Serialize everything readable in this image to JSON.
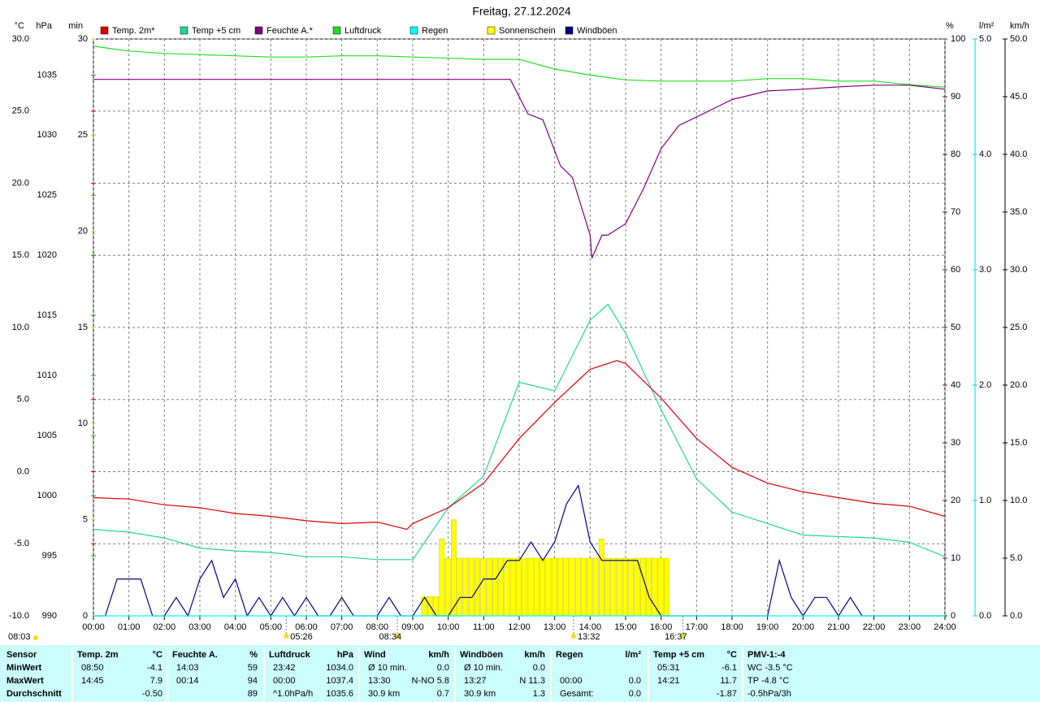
{
  "chart_data": {
    "type": "line",
    "title": "Freitag, 27.12.2024",
    "xlim": [
      0,
      1440
    ],
    "xticks": [
      {
        "value": 0,
        "label": "00:00"
      },
      {
        "value": 60,
        "label": "01:00"
      },
      {
        "value": 120,
        "label": "02:00"
      },
      {
        "value": 180,
        "label": "03:00"
      },
      {
        "value": 240,
        "label": "04:00"
      },
      {
        "value": 300,
        "label": "05:00"
      },
      {
        "value": 360,
        "label": "06:00"
      },
      {
        "value": 420,
        "label": "07:00"
      },
      {
        "value": 480,
        "label": "08:00"
      },
      {
        "value": 540,
        "label": "09:00"
      },
      {
        "value": 600,
        "label": "10:00"
      },
      {
        "value": 660,
        "label": "11:00"
      },
      {
        "value": 720,
        "label": "12:00"
      },
      {
        "value": 780,
        "label": "13:00"
      },
      {
        "value": 840,
        "label": "14:00"
      },
      {
        "value": 900,
        "label": "15:00"
      },
      {
        "value": 960,
        "label": "16:00"
      },
      {
        "value": 1020,
        "label": "17:00"
      },
      {
        "value": 1080,
        "label": "18:00"
      },
      {
        "value": 1140,
        "label": "19:00"
      },
      {
        "value": 1200,
        "label": "20:00"
      },
      {
        "value": 1260,
        "label": "21:00"
      },
      {
        "value": 1320,
        "label": "22:00"
      },
      {
        "value": 1380,
        "label": "23:00"
      },
      {
        "value": 1440,
        "label": "24:00"
      }
    ],
    "grid": true,
    "grid_axis": "temp",
    "axes": {
      "temp": {
        "label": "°C",
        "color": "#e00000",
        "side": "left",
        "lim": [
          -10,
          30
        ],
        "ticks": [
          {
            "value": -10,
            "label": "-10.0"
          },
          {
            "value": -5,
            "label": "-5.0"
          },
          {
            "value": 0,
            "label": "0.0"
          },
          {
            "value": 5,
            "label": "5.0"
          },
          {
            "value": 10,
            "label": "10.0"
          },
          {
            "value": 15,
            "label": "15.0"
          },
          {
            "value": 20,
            "label": "20.0"
          },
          {
            "value": 25,
            "label": "25.0"
          },
          {
            "value": 30,
            "label": "30.0"
          }
        ]
      },
      "hpa": {
        "label": "hPa",
        "color": "#00c000",
        "side": "left",
        "lim": [
          990,
          1038
        ],
        "ticks": [
          990,
          995,
          1000,
          1005,
          1010,
          1015,
          1020,
          1025,
          1030,
          1035
        ]
      },
      "min": {
        "label": "min",
        "color": "#e8e800",
        "side": "left",
        "lim": [
          0,
          30
        ],
        "ticks": [
          0,
          5,
          10,
          15,
          20,
          25,
          30
        ]
      },
      "pct": {
        "label": "%",
        "color": "#800080",
        "side": "right",
        "lim": [
          0,
          100
        ],
        "ticks": [
          0,
          10,
          20,
          30,
          40,
          50,
          60,
          70,
          80,
          90,
          100
        ]
      },
      "rain": {
        "label": "l/m²",
        "color": "#00d8d8",
        "side": "right",
        "lim": [
          0,
          5
        ],
        "ticks": [
          {
            "value": 0,
            "label": "0.0"
          },
          {
            "value": 1,
            "label": "1.0"
          },
          {
            "value": 2,
            "label": "2.0"
          },
          {
            "value": 3,
            "label": "3.0"
          },
          {
            "value": 4,
            "label": "4.0"
          },
          {
            "value": 5,
            "label": "5.0"
          }
        ]
      },
      "wind": {
        "label": "km/h",
        "color": "#000000",
        "side": "right",
        "lim": [
          0,
          50
        ],
        "ticks": [
          {
            "value": 0,
            "label": "0.0"
          },
          {
            "value": 5,
            "label": "5.0"
          },
          {
            "value": 10,
            "label": "10.0"
          },
          {
            "value": 15,
            "label": "15.0"
          },
          {
            "value": 20,
            "label": "20.0"
          },
          {
            "value": 25,
            "label": "25.0"
          },
          {
            "value": 30,
            "label": "30.0"
          },
          {
            "value": 35,
            "label": "35.0"
          },
          {
            "value": 40,
            "label": "40.0"
          },
          {
            "value": 45,
            "label": "45.0"
          },
          {
            "value": 50,
            "label": "50.0"
          }
        ]
      }
    },
    "series": [
      {
        "name": "Temp. 2m*",
        "color": "#e00000",
        "axis": "temp",
        "type": "line",
        "x": [
          0,
          60,
          120,
          180,
          240,
          300,
          360,
          420,
          480,
          530,
          540,
          600,
          660,
          720,
          780,
          840,
          885,
          900,
          960,
          1020,
          1080,
          1140,
          1200,
          1260,
          1320,
          1380,
          1440
        ],
        "values": [
          -1.8,
          -1.9,
          -2.3,
          -2.5,
          -2.9,
          -3.1,
          -3.4,
          -3.6,
          -3.5,
          -4.0,
          -3.6,
          -2.5,
          -0.8,
          2.3,
          4.8,
          7.1,
          7.7,
          7.5,
          5.1,
          2.3,
          0.3,
          -0.8,
          -1.4,
          -1.8,
          -2.2,
          -2.4,
          -3.1
        ]
      },
      {
        "name": "Temp +5 cm",
        "color": "#20d890",
        "axis": "temp",
        "type": "line",
        "x": [
          0,
          60,
          120,
          180,
          240,
          300,
          360,
          420,
          480,
          540,
          600,
          660,
          720,
          780,
          840,
          870,
          900,
          960,
          1020,
          1080,
          1140,
          1200,
          1260,
          1320,
          1380,
          1440
        ],
        "values": [
          -4.0,
          -4.2,
          -4.6,
          -5.3,
          -5.5,
          -5.6,
          -5.9,
          -5.9,
          -6.1,
          -6.1,
          -2.5,
          -0.3,
          6.2,
          5.6,
          10.5,
          11.6,
          9.6,
          4.3,
          -0.5,
          -2.8,
          -3.6,
          -4.4,
          -4.5,
          -4.6,
          -4.9,
          -5.9
        ]
      },
      {
        "name": "Feuchte A.*",
        "color": "#800080",
        "axis": "pct",
        "type": "line",
        "x": [
          0,
          60,
          120,
          180,
          240,
          300,
          360,
          420,
          480,
          540,
          600,
          660,
          705,
          735,
          760,
          790,
          810,
          840,
          843,
          860,
          870,
          885,
          900,
          930,
          960,
          990,
          1020,
          1080,
          1140,
          1200,
          1260,
          1320,
          1380,
          1440
        ],
        "values": [
          93,
          93,
          93,
          93,
          93,
          93,
          93,
          93,
          93,
          93,
          93,
          93,
          93,
          87,
          86,
          78,
          76,
          66,
          62,
          66,
          66,
          67,
          68,
          74,
          81,
          85,
          86.5,
          89.5,
          91,
          91.3,
          91.7,
          92,
          92,
          91.3
        ]
      },
      {
        "name": "Luftdruck",
        "color": "#20e020",
        "axis": "hpa",
        "type": "line",
        "x": [
          0,
          60,
          120,
          180,
          240,
          300,
          360,
          420,
          480,
          540,
          600,
          660,
          720,
          780,
          840,
          900,
          960,
          1020,
          1080,
          1140,
          1200,
          1260,
          1320,
          1380,
          1440
        ],
        "values": [
          1037.4,
          1037.0,
          1036.8,
          1036.7,
          1036.6,
          1036.5,
          1036.5,
          1036.6,
          1036.6,
          1036.5,
          1036.4,
          1036.3,
          1036.3,
          1035.5,
          1035.0,
          1034.6,
          1034.5,
          1034.5,
          1034.5,
          1034.7,
          1034.7,
          1034.5,
          1034.5,
          1034.2,
          1034.0
        ]
      },
      {
        "name": "Regen",
        "color": "#00ffff",
        "label_color": "#00e0e0",
        "axis": "rain",
        "type": "line",
        "x": [
          0,
          1440
        ],
        "values": [
          0,
          0
        ]
      },
      {
        "name": "Sonnenschein",
        "color": "#ffff00",
        "label_color": "#e8e800",
        "axis": "min",
        "type": "bar",
        "x": [
          555,
          565,
          575,
          585,
          595,
          605,
          615,
          625,
          635,
          645,
          655,
          665,
          675,
          685,
          695,
          705,
          715,
          725,
          735,
          745,
          755,
          765,
          775,
          785,
          795,
          805,
          815,
          825,
          835,
          845,
          855,
          865,
          875,
          885,
          895,
          905,
          915,
          925,
          935,
          945,
          955,
          965
        ],
        "values": [
          1,
          1,
          1,
          4,
          3,
          5,
          3,
          3,
          3,
          3,
          3,
          3,
          3,
          3,
          3,
          3,
          3,
          3,
          3,
          3,
          3,
          3,
          3,
          3,
          3,
          3,
          3,
          3,
          3,
          3,
          4,
          3,
          3,
          3,
          3,
          3,
          3,
          3,
          3,
          3,
          3,
          3
        ]
      },
      {
        "name": "Windböen",
        "color": "#000080",
        "axis": "wind",
        "type": "line",
        "x": [
          0,
          20,
          40,
          60,
          80,
          100,
          120,
          140,
          160,
          180,
          200,
          220,
          240,
          260,
          280,
          300,
          320,
          340,
          360,
          380,
          400,
          420,
          440,
          460,
          480,
          500,
          520,
          540,
          560,
          580,
          600,
          620,
          640,
          660,
          680,
          700,
          720,
          740,
          760,
          780,
          800,
          820,
          840,
          860,
          880,
          900,
          920,
          940,
          960,
          980,
          1000,
          1020,
          1040,
          1060,
          1080,
          1100,
          1120,
          1140,
          1160,
          1180,
          1200,
          1220,
          1240,
          1260,
          1280,
          1300,
          1320,
          1340,
          1360,
          1380,
          1400,
          1420,
          1440
        ],
        "values": [
          0,
          0,
          3.2,
          3.2,
          3.2,
          0,
          0,
          1.6,
          0,
          3.2,
          4.8,
          1.6,
          3.2,
          0,
          1.6,
          0,
          1.6,
          0,
          1.6,
          0,
          0,
          1.6,
          0,
          0,
          0,
          1.6,
          0,
          0,
          1.6,
          0,
          0,
          1.6,
          1.6,
          3.2,
          3.2,
          4.8,
          4.8,
          6.4,
          4.8,
          6.4,
          9.7,
          11.3,
          6.4,
          4.8,
          4.8,
          4.8,
          4.8,
          1.6,
          0,
          0,
          0,
          0,
          0,
          0,
          0,
          0,
          0,
          0,
          4.8,
          1.6,
          0,
          1.6,
          1.6,
          0,
          1.6,
          0,
          0,
          0,
          0,
          0,
          0,
          0,
          0
        ]
      }
    ],
    "markers": [
      {
        "x": 326,
        "label": "05:26"
      },
      {
        "x": 514,
        "label": "08:34"
      },
      {
        "x": 812,
        "label": "13:32"
      },
      {
        "x": 997,
        "label": "16:37"
      }
    ],
    "day_length": "08:03"
  },
  "stats": {
    "row_labels": {
      "title": "Sensor",
      "rows": [
        "MinWert",
        "MaxWert",
        "Durchschnitt"
      ]
    },
    "groups": [
      {
        "title": "Temp. 2m",
        "unit": "°C",
        "rows": [
          [
            "08:50",
            "-4.1"
          ],
          [
            "14:45",
            "7.9"
          ],
          [
            null,
            "-0.50"
          ]
        ]
      },
      {
        "title": "Feuchte A.",
        "unit": "%",
        "rows": [
          [
            "14:03",
            "59"
          ],
          [
            "00:14",
            "94"
          ],
          [
            null,
            "89"
          ]
        ]
      },
      {
        "title": "Luftdruck",
        "unit": "hPa",
        "rows": [
          [
            "23:42",
            "1034.0"
          ],
          [
            "00:00",
            "1037.4"
          ],
          [
            "^1.0hPa/h",
            "1035.6"
          ]
        ]
      },
      {
        "title": "Wind",
        "unit": "km/h",
        "rows": [
          [
            "Ø 10 min.",
            "0.0"
          ],
          [
            "13:30",
            "N-NO 5.8"
          ],
          [
            "30.9 km",
            "0.7"
          ]
        ]
      },
      {
        "title": "Windböen",
        "unit": "km/h",
        "rows": [
          [
            "Ø 10 min.",
            "0.0"
          ],
          [
            "13:27",
            "N 11.3"
          ],
          [
            "30.9 km",
            "1.3"
          ]
        ]
      },
      {
        "title": "Regen",
        "unit": "l/m²",
        "rows": [
          [
            null,
            null
          ],
          [
            "00:00",
            "0.0"
          ],
          [
            "Gesamt:",
            "0.0"
          ]
        ]
      },
      {
        "title": "Temp +5 cm",
        "unit": "°C",
        "rows": [
          [
            "05:31",
            "-6.1"
          ],
          [
            "14:21",
            "11.7"
          ],
          [
            null,
            "-1.87"
          ]
        ]
      }
    ],
    "extra": {
      "title": "PMV-1:-4",
      "rows": [
        "WC -3.5 °C",
        "TP -4.8 °C",
        "-0.5hPa/3h"
      ]
    }
  }
}
